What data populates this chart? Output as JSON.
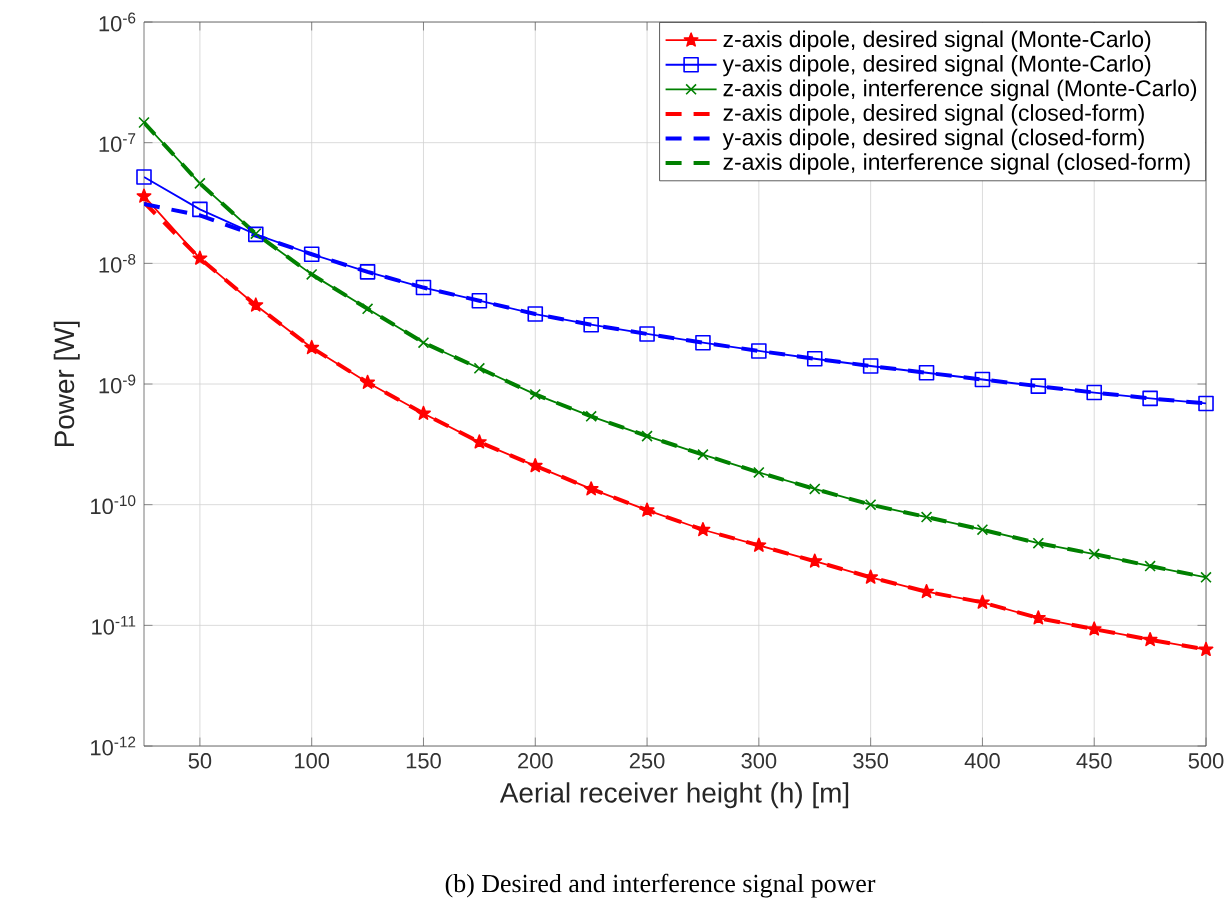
{
  "chart_data": {
    "type": "line",
    "xlabel": "Aerial receiver height (h) [m]",
    "ylabel": "Power [W]",
    "annotations": [
      "(b) Desired and interference signal power"
    ],
    "x": [
      25,
      50,
      75,
      100,
      125,
      150,
      175,
      200,
      225,
      250,
      275,
      300,
      325,
      350,
      375,
      400,
      425,
      450,
      475,
      500
    ],
    "xlim": [
      25,
      500
    ],
    "xticks": [
      50,
      100,
      150,
      200,
      250,
      300,
      350,
      400,
      450,
      500
    ],
    "log": true,
    "ylim": [
      1e-12,
      1e-06
    ],
    "yticks": [
      {
        "value": 1e-12,
        "label": "10$^{-12}$"
      },
      {
        "value": 1e-11,
        "label": "10$^{-11}$"
      },
      {
        "value": 1e-10,
        "label": "10$^{-10}$"
      },
      {
        "value": 1e-09,
        "label": "10$^{-9}$"
      },
      {
        "value": 1e-08,
        "label": "10$^{-8}$"
      },
      {
        "value": 1e-07,
        "label": "10$^{-7}$"
      },
      {
        "value": 1e-06,
        "label": "10$^{-6}$"
      }
    ],
    "grid": true,
    "legend": "top right",
    "series": [
      {
        "name": "z-axis dipole, desired signal (Monte-Carlo)",
        "color": "#ff0000",
        "marker": "star",
        "line_style": "solid",
        "values": [
          3.6e-08,
          1.1e-08,
          4.5e-09,
          2e-09,
          1.03e-09,
          5.7e-10,
          3.3e-10,
          2.1e-10,
          1.35e-10,
          9e-11,
          6.2e-11,
          4.6e-11,
          3.4e-11,
          2.5e-11,
          1.9e-11,
          1.55e-11,
          1.15e-11,
          9.3e-12,
          7.6e-12,
          6.3e-12
        ]
      },
      {
        "name": "y-axis dipole, desired signal (Monte-Carlo)",
        "color": "#0000ff",
        "marker": "square",
        "line_style": "solid",
        "values": [
          5.2e-08,
          2.8e-08,
          1.74e-08,
          1.19e-08,
          8.5e-09,
          6.3e-09,
          4.9e-09,
          3.8e-09,
          3.1e-09,
          2.6e-09,
          2.2e-09,
          1.88e-09,
          1.62e-09,
          1.41e-09,
          1.24e-09,
          1.09e-09,
          9.6e-10,
          8.5e-10,
          7.6e-10,
          6.9e-10
        ]
      },
      {
        "name": "z-axis dipole, interference signal (Monte-Carlo)",
        "color": "#008000",
        "marker": "cross",
        "line_style": "solid",
        "values": [
          1.47e-07,
          4.6e-08,
          1.76e-08,
          8.1e-09,
          4.2e-09,
          2.2e-09,
          1.35e-09,
          8.2e-10,
          5.4e-10,
          3.7e-10,
          2.6e-10,
          1.85e-10,
          1.35e-10,
          1e-10,
          7.9e-11,
          6.2e-11,
          4.8e-11,
          3.9e-11,
          3.1e-11,
          2.5e-11
        ]
      },
      {
        "name": "z-axis dipole, desired signal (closed-form)",
        "color": "#ff0000",
        "marker": "none",
        "line_style": "dashed",
        "values": [
          3.2e-08,
          1.1e-08,
          4.5e-09,
          2e-09,
          1.03e-09,
          5.7e-10,
          3.3e-10,
          2.1e-10,
          1.35e-10,
          9e-11,
          6.2e-11,
          4.6e-11,
          3.4e-11,
          2.5e-11,
          1.9e-11,
          1.55e-11,
          1.15e-11,
          9.3e-12,
          7.6e-12,
          6.3e-12
        ]
      },
      {
        "name": "y-axis dipole, desired signal (closed-form)",
        "color": "#0000ff",
        "marker": "none",
        "line_style": "dashed",
        "values": [
          3.1e-08,
          2.5e-08,
          1.7e-08,
          1.19e-08,
          8.5e-09,
          6.3e-09,
          4.9e-09,
          3.8e-09,
          3.1e-09,
          2.6e-09,
          2.2e-09,
          1.88e-09,
          1.62e-09,
          1.41e-09,
          1.24e-09,
          1.09e-09,
          9.6e-10,
          8.5e-10,
          7.6e-10,
          6.9e-10
        ]
      },
      {
        "name": "z-axis dipole, interference signal (closed-form)",
        "color": "#008000",
        "marker": "none",
        "line_style": "dashed",
        "values": [
          1.47e-07,
          4.6e-08,
          1.76e-08,
          8.1e-09,
          4.2e-09,
          2.2e-09,
          1.35e-09,
          8.2e-10,
          5.4e-10,
          3.7e-10,
          2.6e-10,
          1.85e-10,
          1.35e-10,
          1e-10,
          7.9e-11,
          6.2e-11,
          4.8e-11,
          3.9e-11,
          3.1e-11,
          2.5e-11
        ]
      }
    ]
  }
}
